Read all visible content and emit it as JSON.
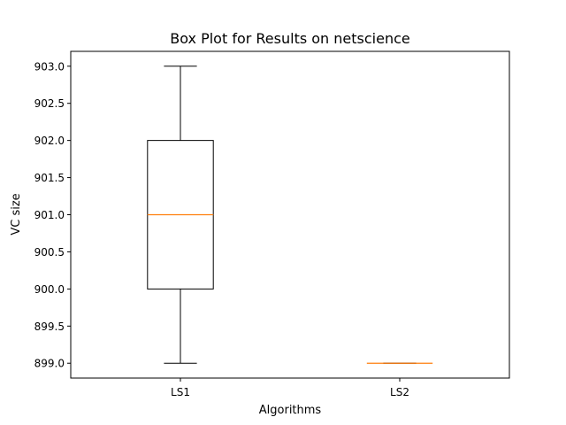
{
  "chart_data": {
    "type": "box",
    "title": "Box Plot for Results on netscience",
    "xlabel": "Algorithms",
    "ylabel": "VC size",
    "ylim": [
      898.8,
      903.2
    ],
    "yticks": [
      "899.0",
      "899.5",
      "900.0",
      "900.5",
      "901.0",
      "901.5",
      "902.0",
      "902.5",
      "903.0"
    ],
    "categories": [
      "LS1",
      "LS2"
    ],
    "boxes": [
      {
        "label": "LS1",
        "whisker_low": 899.0,
        "q1": 900.0,
        "median": 901.0,
        "q3": 902.0,
        "whisker_high": 903.0
      },
      {
        "label": "LS2",
        "whisker_low": 899.0,
        "q1": 899.0,
        "median": 899.0,
        "q3": 899.0,
        "whisker_high": 899.0
      }
    ],
    "grid": false,
    "colors": {
      "box": "#000000",
      "median": "#ff7f0e"
    }
  }
}
